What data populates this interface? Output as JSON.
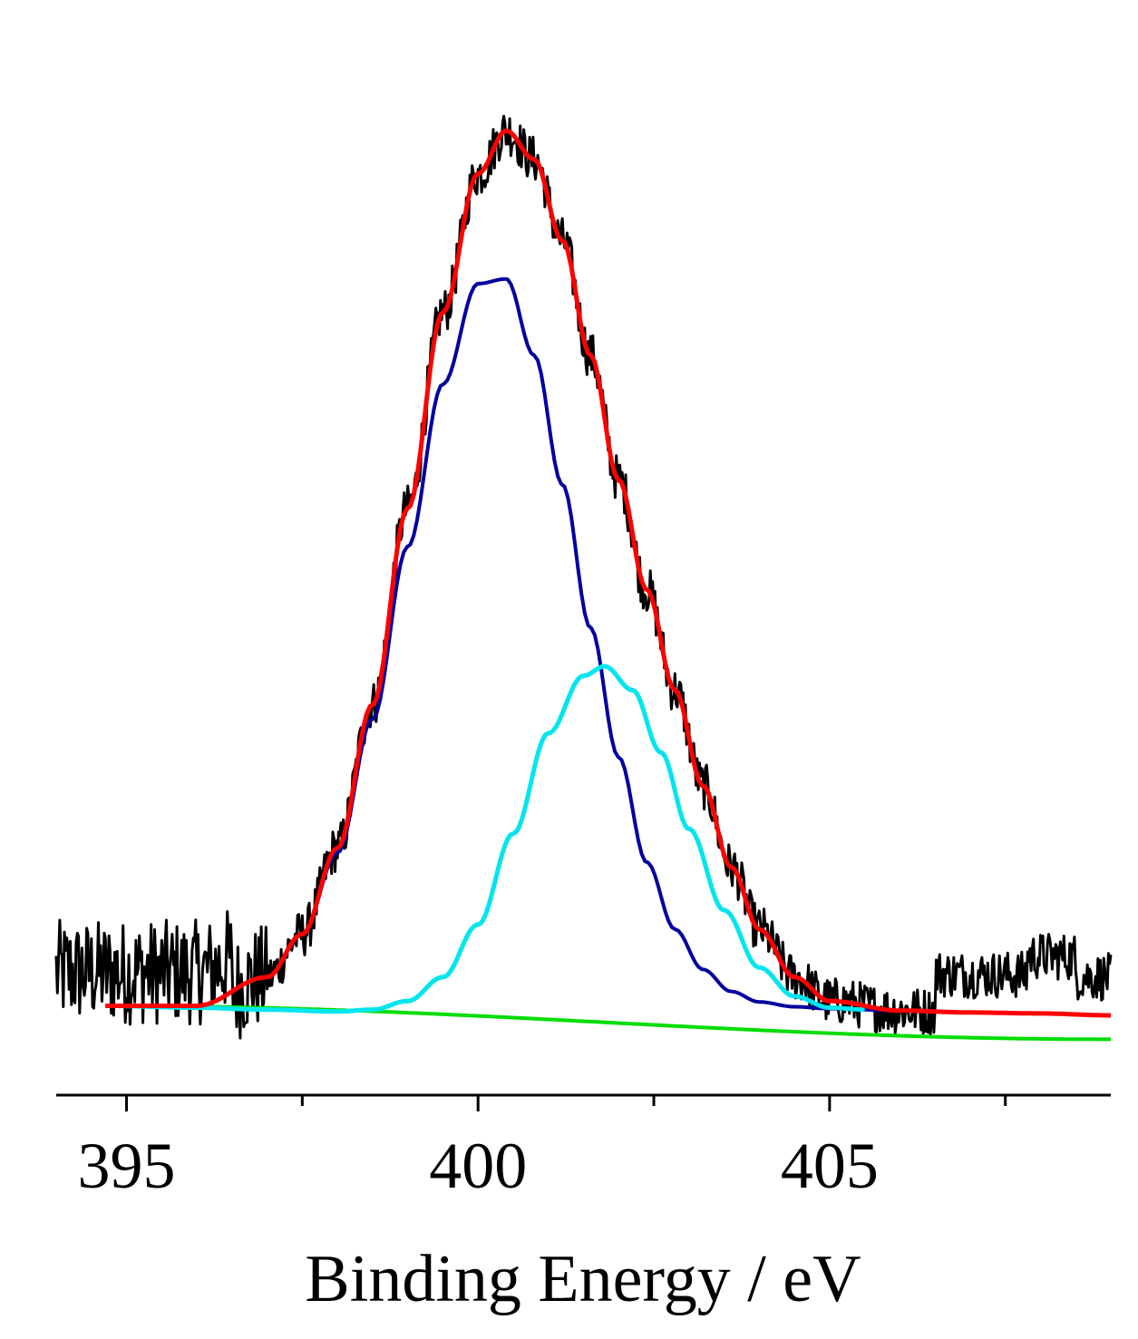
{
  "chart_data": {
    "type": "line",
    "title": "",
    "xlabel": "Binding Energy / eV",
    "ylabel": "",
    "xlim": [
      394,
      409
    ],
    "ylim": [
      -0.06,
      1.0
    ],
    "x_ticks_major": [
      395,
      400,
      405
    ],
    "x_tick_labels": [
      "395",
      "400",
      "405"
    ],
    "x_ticks_minor": [
      397.5,
      402.5,
      407.5
    ],
    "y_axis_visible": false,
    "grid": false,
    "legend": "none",
    "series": [
      {
        "role": "experimental",
        "color": "#000000",
        "noise_amplitude": 0.025,
        "source_series": "envelope"
      },
      {
        "role": "envelope",
        "color": "#ff0000",
        "x": [
          394.7,
          396.0,
          397.0,
          397.5,
          398.0,
          398.5,
          399.0,
          399.5,
          400.0,
          400.4,
          400.8,
          401.2,
          401.6,
          402.0,
          402.4,
          402.8,
          403.2,
          403.6,
          404.0,
          404.5,
          405.0,
          406.0,
          407.0,
          408.0,
          409.0
        ],
        "y": [
          0.01,
          0.01,
          0.04,
          0.085,
          0.175,
          0.325,
          0.53,
          0.735,
          0.88,
          0.925,
          0.895,
          0.81,
          0.69,
          0.56,
          0.445,
          0.34,
          0.24,
          0.155,
          0.09,
          0.04,
          0.015,
          0.005,
          0.003,
          0.002,
          0.0
        ]
      },
      {
        "role": "component",
        "color": "#0000a0",
        "x": [
          394.7,
          396.0,
          397.0,
          397.5,
          398.0,
          398.5,
          399.0,
          399.5,
          400.0,
          400.4,
          400.8,
          401.2,
          401.6,
          402.0,
          402.4,
          402.8,
          403.2,
          403.6,
          404.0,
          404.5,
          405.0,
          406.0,
          407.0,
          408.0,
          409.0
        ],
        "y": [
          0.01,
          0.01,
          0.04,
          0.085,
          0.17,
          0.31,
          0.49,
          0.66,
          0.765,
          0.77,
          0.69,
          0.555,
          0.405,
          0.27,
          0.16,
          0.09,
          0.048,
          0.025,
          0.014,
          0.009,
          0.007,
          0.005,
          0.003,
          0.002,
          0.0
        ]
      },
      {
        "role": "component",
        "color": "#00e5ee",
        "x": [
          394.7,
          396.0,
          397.0,
          398.0,
          398.5,
          399.0,
          399.5,
          400.0,
          400.5,
          401.0,
          401.5,
          401.8,
          402.2,
          402.6,
          403.0,
          403.5,
          404.0,
          404.5,
          405.0,
          405.5
        ],
        "y": [
          0.01,
          0.008,
          0.006,
          0.004,
          0.006,
          0.015,
          0.04,
          0.095,
          0.19,
          0.295,
          0.355,
          0.365,
          0.34,
          0.275,
          0.195,
          0.11,
          0.05,
          0.02,
          0.008,
          0.006
        ]
      },
      {
        "role": "background",
        "color": "#00dd00",
        "x": [
          394.7,
          409.0
        ],
        "y": [
          0.01,
          -0.025
        ]
      }
    ]
  }
}
